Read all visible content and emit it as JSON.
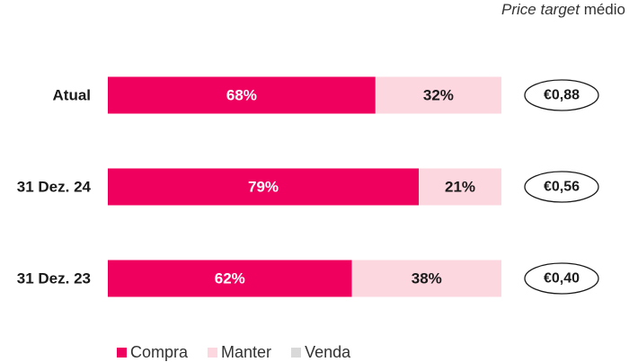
{
  "header": {
    "italic": "Price target",
    "rest": " médio"
  },
  "colors": {
    "compra": "#f0005e",
    "manter": "#fcd7e0",
    "venda": "#d9d9d9"
  },
  "chart_data": {
    "type": "bar",
    "orientation": "horizontal",
    "stacked": true,
    "categories": [
      "Atual",
      "31 Dez. 24",
      "31 Dez. 23"
    ],
    "series": [
      {
        "name": "Compra",
        "values": [
          68,
          79,
          62
        ],
        "labels": [
          "68%",
          "79%",
          "62%"
        ]
      },
      {
        "name": "Manter",
        "values": [
          32,
          21,
          38
        ],
        "labels": [
          "32%",
          "21%",
          "38%"
        ]
      },
      {
        "name": "Venda",
        "values": [
          0,
          0,
          0
        ]
      }
    ],
    "price_targets": [
      "€0,88",
      "€0,56",
      "€0,40"
    ],
    "xlim": [
      0,
      100
    ],
    "legend": "bottom"
  }
}
